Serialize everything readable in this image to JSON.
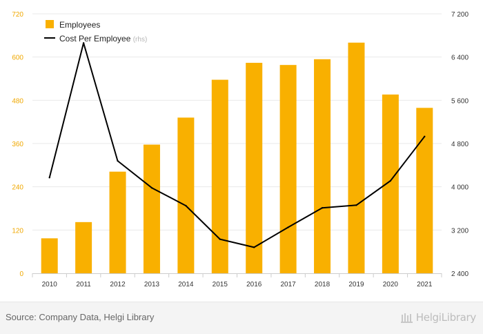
{
  "colors": {
    "bar": "#f9b000",
    "line": "#000000",
    "axis_left": "#f0a800",
    "axis_right": "#333333",
    "grid": "#e9e9e9"
  },
  "chart_data": {
    "type": "bar",
    "categories": [
      "2010",
      "2011",
      "2012",
      "2013",
      "2014",
      "2015",
      "2016",
      "2017",
      "2018",
      "2019",
      "2020",
      "2021"
    ],
    "series": [
      {
        "name": "Employees",
        "type": "bar",
        "axis": "left",
        "values": [
          97,
          142,
          282,
          357,
          432,
          537,
          584,
          578,
          594,
          640,
          496,
          459
        ]
      },
      {
        "name": "Cost Per Employee",
        "type": "line",
        "axis": "right",
        "values": [
          4170,
          6660,
          4480,
          3980,
          3650,
          3030,
          2880,
          3250,
          3610,
          3660,
          4110,
          4930
        ]
      }
    ],
    "ylim_left": [
      0,
      720
    ],
    "ylim_right": [
      2400,
      7200
    ],
    "yticks_left": [
      "0",
      "120",
      "240",
      "360",
      "480",
      "600",
      "720"
    ],
    "yticks_right": [
      "2 400",
      "3 200",
      "4 000",
      "4 800",
      "5 600",
      "6 400",
      "7 200"
    ],
    "legend": [
      {
        "label": "Employees",
        "suffix": ""
      },
      {
        "label": "Cost Per Employee",
        "suffix": "(rhs)"
      }
    ],
    "legend_position": "top-left",
    "grid": true
  },
  "footer": {
    "source": "Source: Company Data, Helgi Library",
    "brand": "HelgiLibrary"
  }
}
